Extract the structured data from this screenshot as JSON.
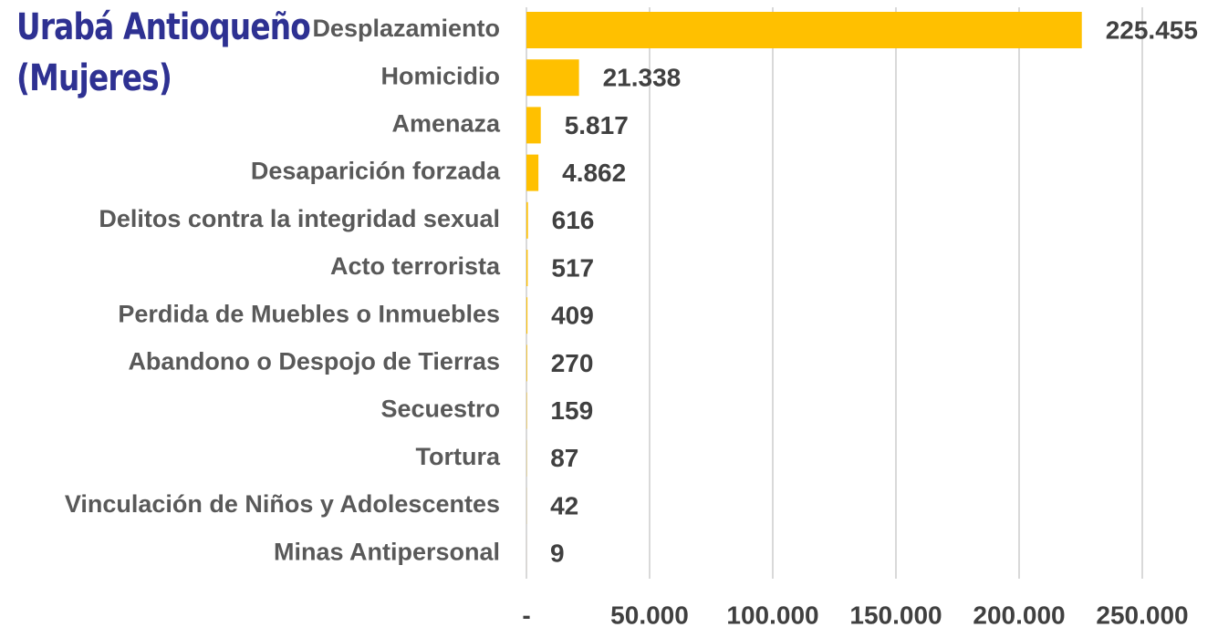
{
  "chart_data": {
    "type": "bar",
    "orientation": "horizontal",
    "title": "Urabá Antioqueño (Mujeres)",
    "categories": [
      "Desplazamiento",
      "Homicidio",
      "Amenaza",
      "Desaparición forzada",
      "Delitos contra la integridad sexual",
      "Acto terrorista",
      "Perdida de Muebles o Inmuebles",
      "Abandono o Despojo de Tierras",
      "Secuestro",
      "Tortura",
      "Vinculación de Niños y Adolescentes",
      "Minas Antipersonal"
    ],
    "values": [
      225455,
      21338,
      5817,
      4862,
      616,
      517,
      409,
      270,
      159,
      87,
      42,
      9
    ],
    "value_labels": [
      "225.455",
      "21.338",
      "5.817",
      "4.862",
      "616",
      "517",
      "409",
      "270",
      "159",
      "87",
      "42",
      "9"
    ],
    "color": "#ffc000",
    "xlim": [
      0,
      250000
    ],
    "xticks": [
      {
        "value": 0,
        "label": "-"
      },
      {
        "value": 50000,
        "label": "50.000"
      },
      {
        "value": 100000,
        "label": "100.000"
      },
      {
        "value": 150000,
        "label": "150.000"
      },
      {
        "value": 200000,
        "label": "200.000"
      },
      {
        "value": 250000,
        "label": "250.000"
      }
    ],
    "grid": true
  }
}
